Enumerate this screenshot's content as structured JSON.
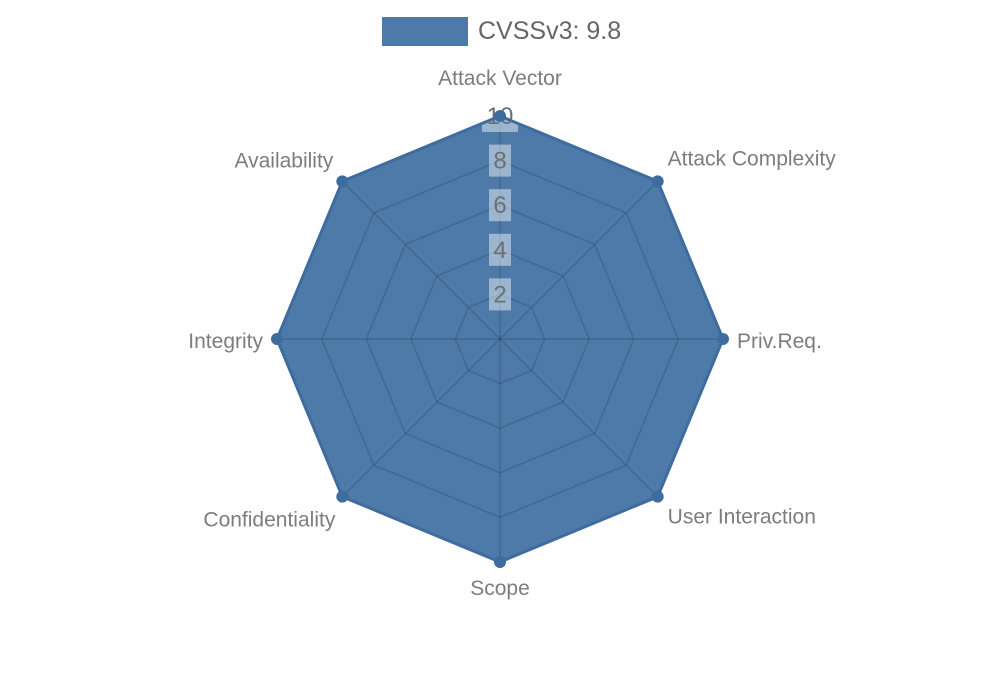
{
  "legend": {
    "label": "CVSSv3: 9.8"
  },
  "chart_data": {
    "type": "radar",
    "categories": [
      "Attack Vector",
      "Attack Complexity",
      "Priv.Req.",
      "User Interaction",
      "Scope",
      "Confidentiality",
      "Integrity",
      "Availability"
    ],
    "series": [
      {
        "name": "CVSSv3: 9.8",
        "values": [
          10,
          10,
          10,
          10,
          10,
          10,
          10,
          10
        ]
      }
    ],
    "radial_ticks": [
      2,
      4,
      6,
      8,
      10
    ],
    "range": [
      0,
      10
    ],
    "grid": true,
    "legend_position": "top-center",
    "colors": {
      "series_fill": "#4d7aa8",
      "series_line": "#3f6c9e",
      "grid_line": "rgba(0,0,0,0.14)",
      "axis_label": "#7d7d7d",
      "tick_label": "#6b7075",
      "tick_box": "rgba(255,255,255,0.45)",
      "legend_text": "#666666"
    }
  }
}
